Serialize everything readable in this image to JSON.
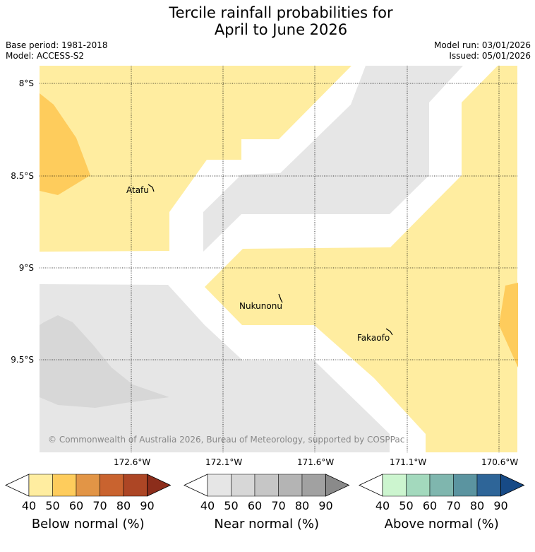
{
  "title": {
    "line1": "Tercile rainfall probabilities for",
    "line2": "April to June 2026"
  },
  "meta": {
    "base_period": "Base period: 1981-2018",
    "model": "Model: ACCESS-S2",
    "model_run": "Model run: 03/01/2026",
    "issued": "Issued: 05/01/2026"
  },
  "map": {
    "lat_labels": [
      "8°S",
      "8.5°S",
      "9°S",
      "9.5°S"
    ],
    "lon_labels": [
      "172.6°W",
      "172.1°W",
      "171.6°W",
      "171.1°W",
      "170.6°W"
    ],
    "places": [
      "Atafu",
      "Nukunonu",
      "Fakaofo"
    ],
    "credit": "© Commonwealth of Australia 2026, Bureau of Meteorology, supported by COSPPac",
    "colors": {
      "below_40_50": "#ffeda0",
      "below_50_60": "#fecc5c",
      "near_40_50": "#e6e6e6",
      "near_50_60": "#d7d7d7",
      "no_signal": "#ffffff"
    }
  },
  "colorbars": [
    {
      "name": "below",
      "title": "Below normal (%)",
      "ticks": [
        "40",
        "50",
        "60",
        "70",
        "80",
        "90"
      ],
      "colors": [
        "#ffffff",
        "#ffeda0",
        "#fecc5c",
        "#e29546",
        "#c9632f",
        "#ad4625",
        "#8c2d1b"
      ]
    },
    {
      "name": "near",
      "title": "Near normal (%)",
      "ticks": [
        "40",
        "50",
        "60",
        "70",
        "80",
        "90"
      ],
      "colors": [
        "#ffffff",
        "#e6e6e6",
        "#d7d7d7",
        "#c6c6c6",
        "#b4b4b4",
        "#a1a1a1",
        "#8a8a8a"
      ]
    },
    {
      "name": "above",
      "title": "Above normal (%)",
      "ticks": [
        "40",
        "50",
        "60",
        "70",
        "80",
        "90"
      ],
      "colors": [
        "#ffffff",
        "#ccf5cf",
        "#a3d9bd",
        "#7fb6ae",
        "#5b94a0",
        "#2e6598",
        "#174a86"
      ]
    }
  ]
}
